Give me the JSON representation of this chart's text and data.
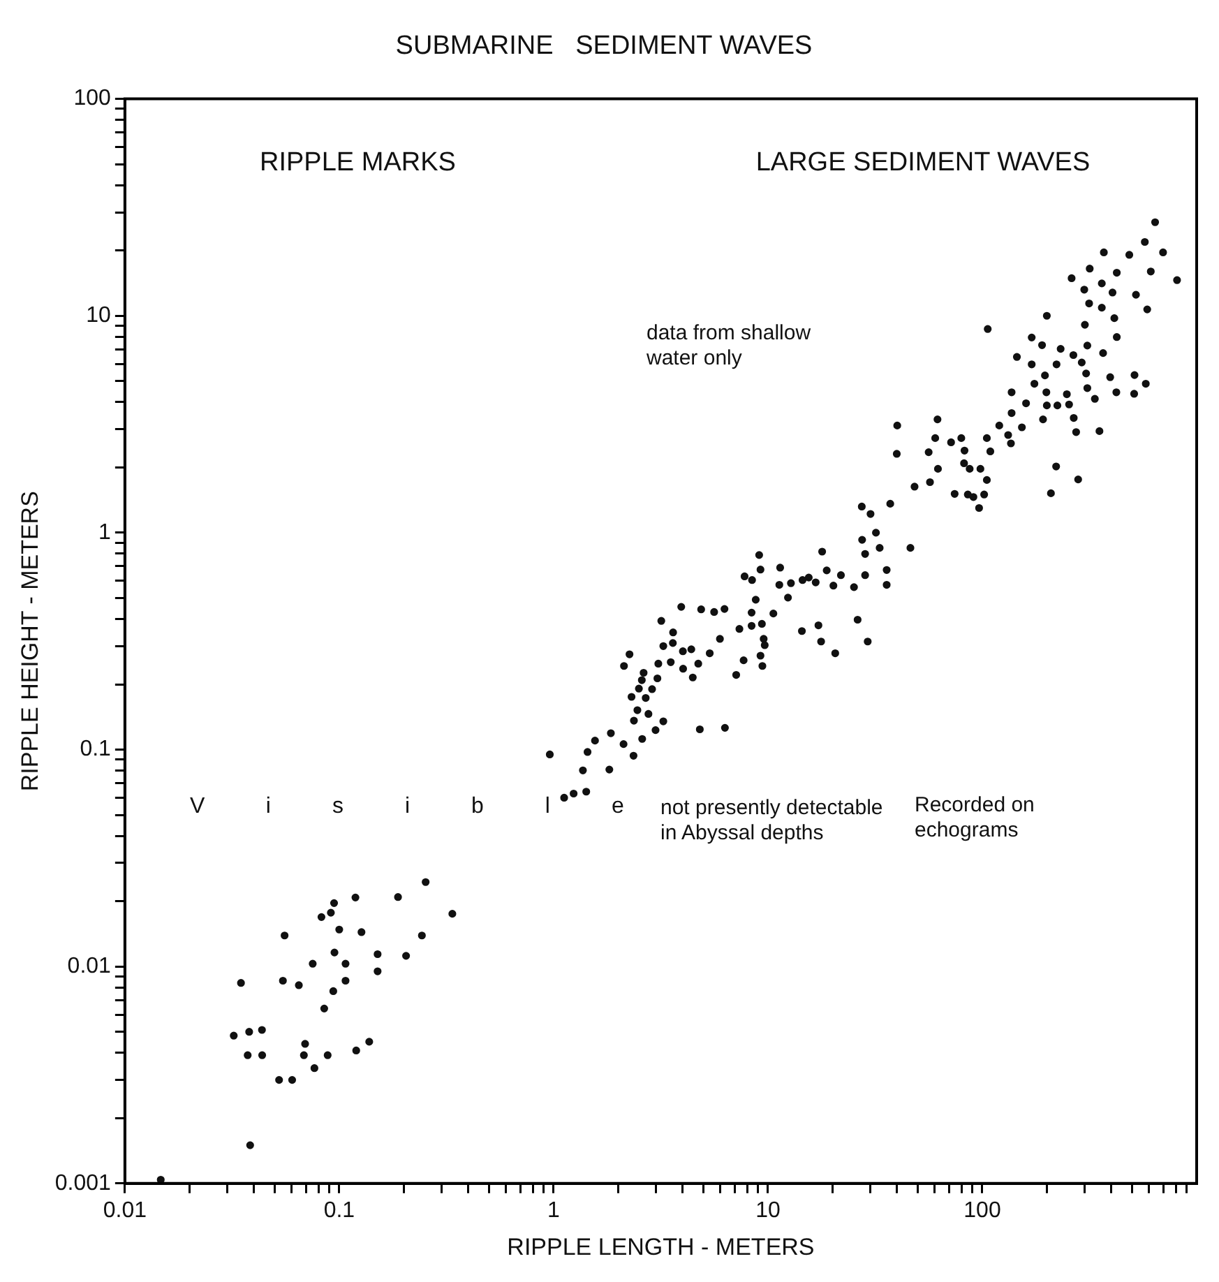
{
  "chart_data": {
    "type": "scatter",
    "title": "SUBMARINE   SEDIMENT WAVES",
    "xlabel": "RIPPLE LENGTH - METERS",
    "ylabel": "RIPPLE HEIGHT - METERS",
    "annotations": [
      "RIPPLE MARKS",
      "LARGE SEDIMENT WAVES",
      "data from shallow water only",
      "Visible",
      "not presently detectable in Abyssal depths",
      "Recorded on echograms"
    ],
    "log": "xy",
    "grid": false,
    "legend": false,
    "marker": "circle",
    "color": "#111111",
    "xlim": [
      0.01,
      1000
    ],
    "ylim": [
      0.001,
      100
    ],
    "xticks": [
      0.01,
      {
        "value": 0.02,
        "label": null
      },
      {
        "value": 0.03,
        "label": null
      },
      {
        "value": 0.04,
        "label": null
      },
      {
        "value": 0.05,
        "label": null
      },
      {
        "value": 0.06,
        "label": null
      },
      {
        "value": 0.07,
        "label": null
      },
      {
        "value": 0.08,
        "label": null
      },
      {
        "value": 0.09,
        "label": null
      },
      0.1,
      {
        "value": 0.2,
        "label": null
      },
      {
        "value": 0.3,
        "label": null
      },
      {
        "value": 0.4,
        "label": null
      },
      {
        "value": 0.5,
        "label": null
      },
      {
        "value": 0.6,
        "label": null
      },
      {
        "value": 0.7,
        "label": null
      },
      {
        "value": 0.8,
        "label": null
      },
      {
        "value": 0.9,
        "label": null
      },
      1,
      {
        "value": 2,
        "label": null
      },
      {
        "value": 3,
        "label": null
      },
      {
        "value": 4,
        "label": null
      },
      {
        "value": 5,
        "label": null
      },
      {
        "value": 6,
        "label": null
      },
      {
        "value": 7,
        "label": null
      },
      {
        "value": 8,
        "label": null
      },
      {
        "value": 9,
        "label": null
      },
      10,
      {
        "value": 20,
        "label": null
      },
      {
        "value": 30,
        "label": null
      },
      {
        "value": 40,
        "label": null
      },
      {
        "value": 50,
        "label": null
      },
      {
        "value": 60,
        "label": null
      },
      {
        "value": 70,
        "label": null
      },
      {
        "value": 80,
        "label": null
      },
      {
        "value": 90,
        "label": null
      },
      100,
      {
        "value": 200,
        "label": null
      },
      {
        "value": 300,
        "label": null
      },
      {
        "value": 400,
        "label": null
      },
      {
        "value": 500,
        "label": null
      },
      {
        "value": 600,
        "label": null
      },
      {
        "value": 700,
        "label": null
      },
      {
        "value": 800,
        "label": null
      },
      {
        "value": 900,
        "label": null
      }
    ],
    "yticks": [
      0.001,
      {
        "value": 0.002,
        "label": null
      },
      {
        "value": 0.003,
        "label": null
      },
      {
        "value": 0.004,
        "label": null
      },
      {
        "value": 0.005,
        "label": null
      },
      {
        "value": 0.006,
        "label": null
      },
      {
        "value": 0.007,
        "label": null
      },
      {
        "value": 0.008,
        "label": null
      },
      {
        "value": 0.009,
        "label": null
      },
      0.01,
      {
        "value": 0.02,
        "label": null
      },
      {
        "value": 0.03,
        "label": null
      },
      {
        "value": 0.04,
        "label": null
      },
      {
        "value": 0.05,
        "label": null
      },
      {
        "value": 0.06,
        "label": null
      },
      {
        "value": 0.07,
        "label": null
      },
      {
        "value": 0.08,
        "label": null
      },
      {
        "value": 0.09,
        "label": null
      },
      0.1,
      {
        "value": 0.2,
        "label": null
      },
      {
        "value": 0.3,
        "label": null
      },
      {
        "value": 0.4,
        "label": null
      },
      {
        "value": 0.5,
        "label": null
      },
      {
        "value": 0.6,
        "label": null
      },
      {
        "value": 0.7,
        "label": null
      },
      {
        "value": 0.8,
        "label": null
      },
      {
        "value": 0.9,
        "label": null
      },
      1,
      {
        "value": 2,
        "label": null
      },
      {
        "value": 3,
        "label": null
      },
      {
        "value": 4,
        "label": null
      },
      {
        "value": 5,
        "label": null
      },
      {
        "value": 6,
        "label": null
      },
      {
        "value": 7,
        "label": null
      },
      {
        "value": 8,
        "label": null
      },
      {
        "value": 9,
        "label": null
      },
      10,
      {
        "value": 20,
        "label": null
      },
      {
        "value": 30,
        "label": null
      },
      {
        "value": 40,
        "label": null
      },
      {
        "value": 50,
        "label": null
      },
      {
        "value": 60,
        "label": null
      },
      {
        "value": 70,
        "label": null
      },
      {
        "value": 80,
        "label": null
      },
      {
        "value": 90,
        "label": null
      },
      100
    ],
    "x": [
      0.253,
      0.119,
      0.188,
      0.0946,
      0.0914,
      0.0826,
      0.337,
      0.0556,
      0.1,
      0.127,
      0.243,
      0.095,
      0.151,
      0.205,
      0.0752,
      0.107,
      0.0348,
      0.0546,
      0.0648,
      0.151,
      0.107,
      0.0938,
      0.0851,
      0.0322,
      0.038,
      0.0436,
      0.0693,
      0.0374,
      0.0437,
      0.0684,
      0.0883,
      0.12,
      0.138,
      0.0766,
      0.0524,
      0.0603,
      0.0384,
      0.0147,
      30.1,
      27.5,
      31.9,
      33.2,
      28.4,
      17.9,
      9.1,
      9.23,
      11.4,
      7.78,
      8.43,
      11.3,
      12.8,
      14.5,
      15.5,
      16.7,
      18.8,
      20.2,
      21.9,
      25.2,
      28.4,
      35.8,
      35.8,
      12.4,
      8.77,
      10.6,
      8.39,
      7.36,
      8.39,
      9.37,
      9.55,
      9.66,
      9.23,
      9.42,
      7.7,
      7.11,
      14.4,
      17.2,
      17.7,
      20.6,
      26.2,
      29.2,
      3.94,
      4.88,
      5.61,
      6.27,
      5.97,
      5.35,
      3.18,
      3.61,
      3.25,
      3.6,
      4.01,
      4.39,
      4.73,
      4.02,
      4.46,
      3.52,
      3.08,
      3.05,
      2.63,
      2.58,
      2.26,
      2.13,
      2.5,
      2.88,
      2.31,
      2.69,
      2.46,
      2.77,
      3.25,
      2.99,
      2.37,
      2.59,
      2.12,
      1.85,
      2.36,
      1.56,
      1.44,
      1.82,
      1.37,
      0.96,
      1.42,
      1.24,
      1.12,
      4.81,
      6.3,
      640,
      573,
      697,
      369,
      485,
      317,
      424,
      611,
      810,
      261,
      299,
      361,
      405,
      315,
      361,
      521,
      588,
      413,
      200,
      106,
      301,
      424,
      170,
      190,
      232,
      266,
      309,
      366,
      145,
      170,
      222,
      291,
      196,
      305,
      395,
      513,
      579,
      175,
      309,
      137,
      199,
      248,
      335,
      422,
      511,
      160,
      200,
      224,
      254,
      267,
      137,
      192,
      274,
      352,
      120,
      153,
      132,
      136,
      105,
      109,
      61.8,
      40.1,
      60.3,
      79.8,
      71.5,
      82.6,
      56.2,
      39.9,
      62.1,
      82.2,
      87.3,
      98,
      105,
      57,
      48.3,
      74.3,
      85.6,
      90.9,
      102,
      96.6,
      221,
      280,
      209,
      37.2,
      27.4,
      46.2
    ],
    "values": [
      0.0245,
      0.0208,
      0.0209,
      0.0196,
      0.0177,
      0.0169,
      0.0175,
      0.0139,
      0.0148,
      0.0144,
      0.0139,
      0.0116,
      0.0114,
      0.0112,
      0.0103,
      0.0103,
      0.0084,
      0.0086,
      0.0082,
      0.0095,
      0.0086,
      0.0077,
      0.0064,
      0.0048,
      0.005,
      0.0051,
      0.0044,
      0.0039,
      0.0039,
      0.0039,
      0.0039,
      0.0041,
      0.0045,
      0.0034,
      0.003,
      0.003,
      0.0015,
      0.00104,
      1.22,
      0.927,
      1.0,
      0.851,
      0.798,
      0.818,
      0.789,
      0.676,
      0.69,
      0.629,
      0.605,
      0.575,
      0.585,
      0.605,
      0.621,
      0.59,
      0.67,
      0.57,
      0.637,
      0.561,
      0.637,
      0.673,
      0.575,
      0.502,
      0.491,
      0.424,
      0.428,
      0.36,
      0.372,
      0.38,
      0.324,
      0.303,
      0.271,
      0.243,
      0.258,
      0.221,
      0.352,
      0.374,
      0.315,
      0.278,
      0.397,
      0.315,
      0.455,
      0.443,
      0.431,
      0.445,
      0.324,
      0.278,
      0.392,
      0.347,
      0.3,
      0.31,
      0.284,
      0.29,
      0.249,
      0.236,
      0.215,
      0.253,
      0.249,
      0.213,
      0.226,
      0.209,
      0.275,
      0.243,
      0.191,
      0.19,
      0.175,
      0.173,
      0.152,
      0.146,
      0.135,
      0.123,
      0.136,
      0.112,
      0.106,
      0.119,
      0.0937,
      0.11,
      0.0975,
      0.0809,
      0.0802,
      0.095,
      0.064,
      0.0627,
      0.06,
      0.124,
      0.126,
      27.0,
      21.9,
      19.6,
      19.6,
      19.1,
      16.5,
      15.8,
      16.0,
      14.6,
      14.9,
      13.2,
      14.1,
      12.8,
      11.4,
      10.9,
      12.5,
      10.7,
      9.75,
      10.0,
      8.69,
      9.09,
      7.98,
      7.94,
      7.32,
      7.04,
      6.59,
      7.29,
      6.73,
      6.46,
      5.97,
      5.97,
      6.09,
      5.31,
      5.42,
      5.21,
      5.33,
      4.86,
      4.86,
      4.64,
      4.44,
      4.44,
      4.35,
      4.14,
      4.44,
      4.37,
      3.95,
      3.86,
      3.86,
      3.9,
      3.38,
      3.56,
      3.33,
      2.91,
      2.94,
      3.12,
      3.06,
      2.82,
      2.58,
      2.73,
      2.37,
      3.33,
      3.12,
      2.73,
      2.73,
      2.61,
      2.39,
      2.35,
      2.31,
      1.97,
      2.09,
      1.97,
      1.97,
      1.75,
      1.71,
      1.63,
      1.51,
      1.5,
      1.46,
      1.5,
      1.3,
      2.02,
      1.76,
      1.52,
      1.36,
      1.32,
      0.851
    ]
  }
}
